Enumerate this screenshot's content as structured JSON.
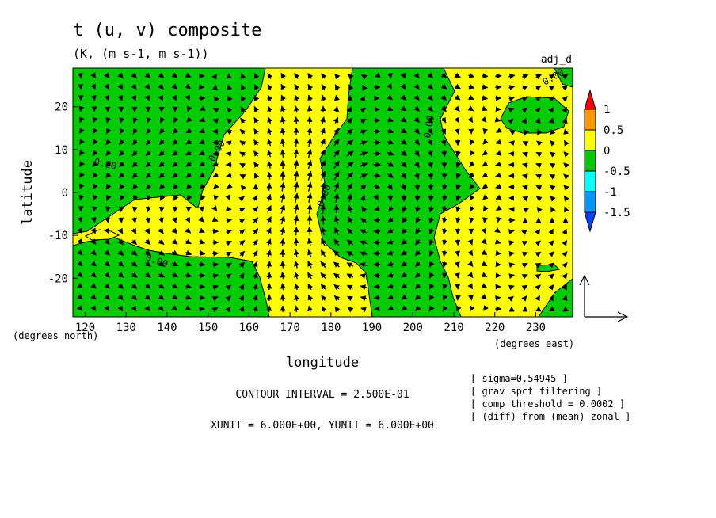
{
  "chart_data": {
    "type": "contour_vector",
    "title": "t (u, v) composite",
    "subtitle": "(K, (m s-1, m s-1))",
    "experiment": "adj_d",
    "xlabel": "longitude",
    "ylabel": "latitude",
    "xunit_label": "(degrees_east)",
    "yunit_label": "(degrees_north)",
    "xlim": [
      117,
      239
    ],
    "ylim": [
      -29,
      29
    ],
    "x_ticks": [
      120,
      130,
      140,
      150,
      160,
      170,
      180,
      190,
      200,
      210,
      220,
      230
    ],
    "y_ticks": [
      20,
      10,
      0,
      -10,
      -20
    ],
    "colorbar": {
      "labels": [
        "1",
        "0.5",
        "0",
        "-0.5",
        "-1",
        "-1.5"
      ],
      "colors": [
        "#ff0000",
        "#ff9900",
        "#ffff00",
        "#00cc00",
        "#00ffff",
        "#0099ff",
        "#0044ff"
      ]
    },
    "contour_labels": [
      "0.00",
      "0.00",
      "0.00",
      "0.00",
      "0.00",
      "0.00"
    ],
    "contour_interval": "CONTOUR INTERVAL = 2.500E-01",
    "vector_units": "XUNIT = 6.000E+00, YUNIT = 6.000E+00",
    "notes": [
      "[ sigma=0.54945 ]",
      "[ grav spct filtering ]",
      "[ comp threshold = 0.0002 ]",
      "[ (diff) from (mean) zonal ]"
    ],
    "colors": {
      "positive": "#ffff00",
      "negative": "#00cc00"
    }
  }
}
